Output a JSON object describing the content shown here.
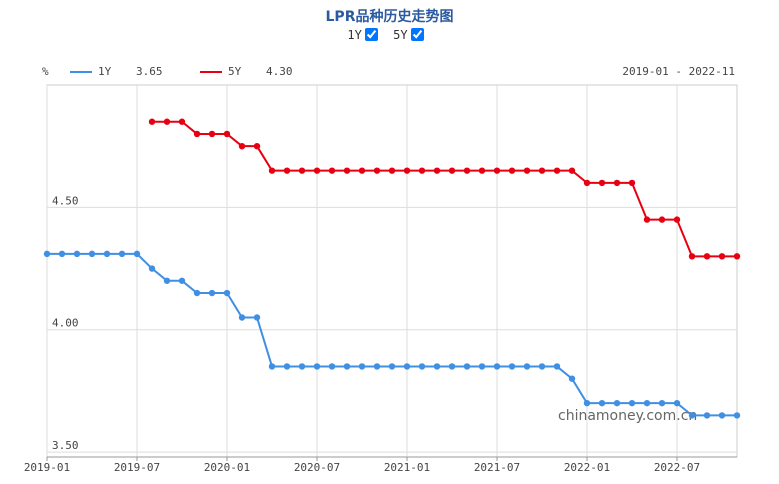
{
  "chart_data": {
    "type": "line",
    "title": "LPR品种历史走势图",
    "y_unit": "%",
    "range_label": "2019-01 - 2022-11",
    "watermark": "chinamoney.com.cn",
    "x": [
      "2019-01",
      "2019-02",
      "2019-03",
      "2019-04",
      "2019-05",
      "2019-06",
      "2019-07",
      "2019-08",
      "2019-09",
      "2019-10",
      "2019-11",
      "2019-12",
      "2020-01",
      "2020-02",
      "2020-03",
      "2020-04",
      "2020-05",
      "2020-06",
      "2020-07",
      "2020-08",
      "2020-09",
      "2020-10",
      "2020-11",
      "2020-12",
      "2021-01",
      "2021-02",
      "2021-03",
      "2021-04",
      "2021-05",
      "2021-06",
      "2021-07",
      "2021-08",
      "2021-09",
      "2021-10",
      "2021-11",
      "2021-12",
      "2022-01",
      "2022-02",
      "2022-03",
      "2022-04",
      "2022-05",
      "2022-06",
      "2022-07",
      "2022-08",
      "2022-09",
      "2022-10",
      "2022-11"
    ],
    "xticks": [
      "2019-01",
      "2019-07",
      "2020-01",
      "2020-07",
      "2021-01",
      "2021-07",
      "2022-01",
      "2022-07"
    ],
    "ylim": [
      3.48,
      5.0
    ],
    "yticks": [
      {
        "value": 3.5,
        "label": "3.50"
      },
      {
        "value": 4.0,
        "label": "4.00"
      },
      {
        "value": 4.5,
        "label": "4.50"
      }
    ],
    "grid": true,
    "series": [
      {
        "name": "1Y",
        "color": "#3f8fe3",
        "legend_value": "3.65",
        "values": [
          4.31,
          4.31,
          4.31,
          4.31,
          4.31,
          4.31,
          4.31,
          4.25,
          4.2,
          4.2,
          4.15,
          4.15,
          4.15,
          4.05,
          4.05,
          3.85,
          3.85,
          3.85,
          3.85,
          3.85,
          3.85,
          3.85,
          3.85,
          3.85,
          3.85,
          3.85,
          3.85,
          3.85,
          3.85,
          3.85,
          3.85,
          3.85,
          3.85,
          3.85,
          3.85,
          3.8,
          3.7,
          3.7,
          3.7,
          3.7,
          3.7,
          3.7,
          3.7,
          3.65,
          3.65,
          3.65,
          3.65
        ]
      },
      {
        "name": "5Y",
        "color": "#e60012",
        "legend_value": "4.30",
        "values": [
          null,
          null,
          null,
          null,
          null,
          null,
          null,
          4.85,
          4.85,
          4.85,
          4.8,
          4.8,
          4.8,
          4.75,
          4.75,
          4.65,
          4.65,
          4.65,
          4.65,
          4.65,
          4.65,
          4.65,
          4.65,
          4.65,
          4.65,
          4.65,
          4.65,
          4.65,
          4.65,
          4.65,
          4.65,
          4.65,
          4.65,
          4.65,
          4.65,
          4.65,
          4.6,
          4.6,
          4.6,
          4.6,
          4.45,
          4.45,
          4.45,
          4.3,
          4.3,
          4.3,
          4.3
        ]
      }
    ]
  }
}
